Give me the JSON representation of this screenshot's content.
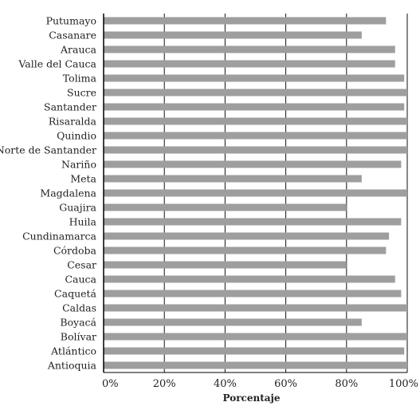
{
  "chart_data": {
    "type": "bar",
    "orientation": "horizontal",
    "categories": [
      "Putumayo",
      "Casanare",
      "Arauca",
      "Valle del Cauca",
      "Tolima",
      "Sucre",
      "Santander",
      "Risaralda",
      "Quindio",
      "Norte de Santander",
      "Nariño",
      "Meta",
      "Magdalena",
      "Guajira",
      "Huila",
      "Cundinamarca",
      "Córdoba",
      "Cesar",
      "Cauca",
      "Caquetá",
      "Caldas",
      "Boyacá",
      "Bolívar",
      "Atlántico",
      "Antioquia"
    ],
    "values": [
      93,
      85,
      96,
      96,
      99,
      100,
      99,
      100,
      100,
      100,
      98,
      85,
      100,
      80,
      98,
      94,
      93,
      80,
      96,
      98,
      100,
      85,
      100,
      99,
      100
    ],
    "xlim": [
      0,
      100
    ],
    "xticks": [
      "0%",
      "20%",
      "40%",
      "60%",
      "80%",
      "100%"
    ],
    "xlabel": "Porcentaje",
    "ylabel": "",
    "title": "",
    "grid": true,
    "bar_color": "#9e9e9e"
  }
}
